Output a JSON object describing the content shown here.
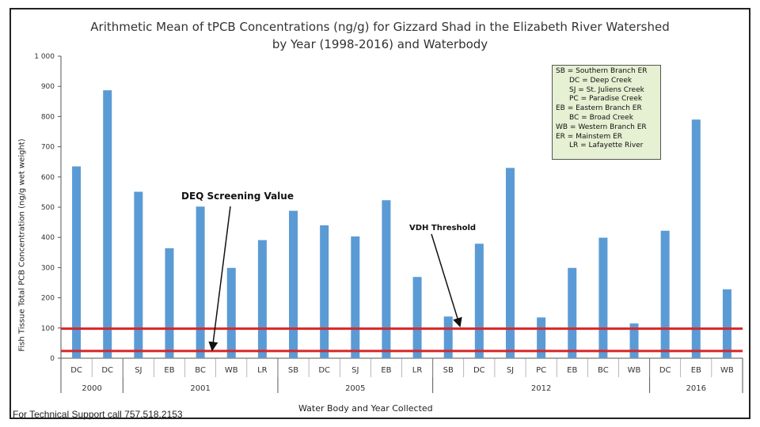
{
  "chart_data": {
    "type": "bar",
    "title": "Arithmetic Mean of tPCB Concentrations (ng/g) for Gizzard Shad in the Elizabeth River Watershed",
    "subtitle": "by Year (1998-2016) and Waterbody",
    "xlabel": "Water Body and Year Collected",
    "ylabel": "Fish Tissue Total PCB Concentration (ng/g wet weight)",
    "ylim": [
      0,
      1000
    ],
    "yticks": [
      "0",
      "100",
      "200",
      "300",
      "400",
      "500",
      "600",
      "700",
      "800",
      "900",
      "1 000"
    ],
    "grid": false,
    "bar_color": "#5b9bd5",
    "categories": [
      "DC",
      "DC",
      "SJ",
      "EB",
      "BC",
      "WB",
      "LR",
      "SB",
      "DC",
      "SJ",
      "EB",
      "LR",
      "SB",
      "DC",
      "SJ",
      "PC",
      "EB",
      "BC",
      "WB",
      "DC",
      "EB",
      "WB"
    ],
    "values": [
      635,
      887,
      551,
      364,
      502,
      299,
      391,
      488,
      440,
      403,
      523,
      269,
      138,
      379,
      630,
      135,
      299,
      399,
      115,
      422,
      790,
      228
    ],
    "year_groups": [
      {
        "label": "2000",
        "count": 2
      },
      {
        "label": "2001",
        "count": 5
      },
      {
        "label": "2005",
        "count": 5
      },
      {
        "label": "2012",
        "count": 7
      },
      {
        "label": "2016",
        "count": 3
      }
    ],
    "reference_lines": [
      {
        "value": 98,
        "color": "#d62728"
      },
      {
        "value": 24,
        "color": "#d62728"
      }
    ],
    "annotations": [
      {
        "text": "DEQ Screening Value",
        "target_value": 24
      },
      {
        "text": "VDH Threshold",
        "target_value": 98
      }
    ],
    "legend": {
      "placement": "top-right",
      "entries": [
        {
          "text": "SB = Southern Branch ER",
          "indent": false
        },
        {
          "text": "DC = Deep Creek",
          "indent": true
        },
        {
          "text": "SJ = St. Juliens Creek",
          "indent": true
        },
        {
          "text": "PC = Paradise Creek",
          "indent": true
        },
        {
          "text": "EB = Eastern Branch ER",
          "indent": false
        },
        {
          "text": "BC = Broad Creek",
          "indent": true
        },
        {
          "text": "WB = Western Branch ER",
          "indent": false
        },
        {
          "text": "ER = Mainstem ER",
          "indent": false
        },
        {
          "text": "LR = Lafayette River",
          "indent": true
        }
      ]
    }
  },
  "footer": {
    "support_text": "For Technical Support call 757.518.2153"
  }
}
